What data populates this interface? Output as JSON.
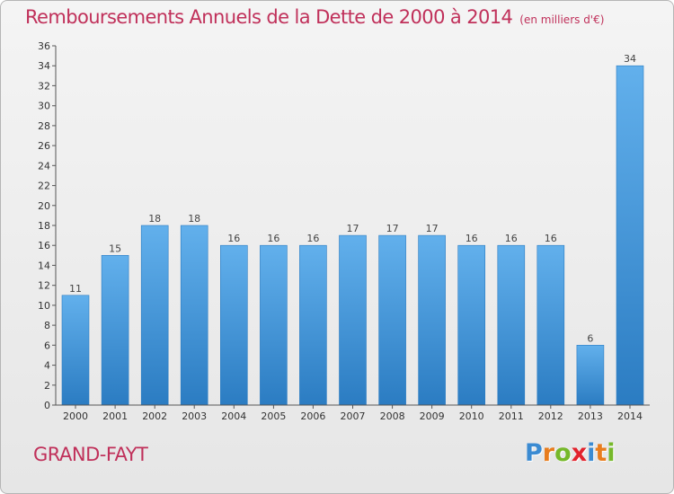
{
  "header": {
    "title": "Remboursements Annuels de la Dette de 2000 à 2014",
    "unit": "(en milliers d'€)"
  },
  "footer": {
    "commune": "GRAND-FAYT",
    "logo_letters": [
      "P",
      "r",
      "o",
      "x",
      "i",
      "t",
      "i"
    ]
  },
  "colors": {
    "bar_light": "#62b0ec",
    "bar_dark": "#2b7cc2",
    "title": "#c0305a",
    "axis": "#555555"
  },
  "chart_data": {
    "type": "bar",
    "categories": [
      "2000",
      "2001",
      "2002",
      "2003",
      "2004",
      "2005",
      "2006",
      "2007",
      "2008",
      "2009",
      "2010",
      "2011",
      "2012",
      "2013",
      "2014"
    ],
    "values": [
      11,
      15,
      18,
      18,
      16,
      16,
      16,
      17,
      17,
      17,
      16,
      16,
      16,
      6,
      34
    ],
    "title": "Remboursements Annuels de la Dette de 2000 à 2014",
    "ylim": [
      0,
      36
    ],
    "yticks": [
      0,
      2,
      4,
      6,
      8,
      10,
      12,
      14,
      16,
      18,
      20,
      22,
      24,
      26,
      28,
      30,
      32,
      34,
      36
    ],
    "grid": false,
    "data_labels": true
  }
}
